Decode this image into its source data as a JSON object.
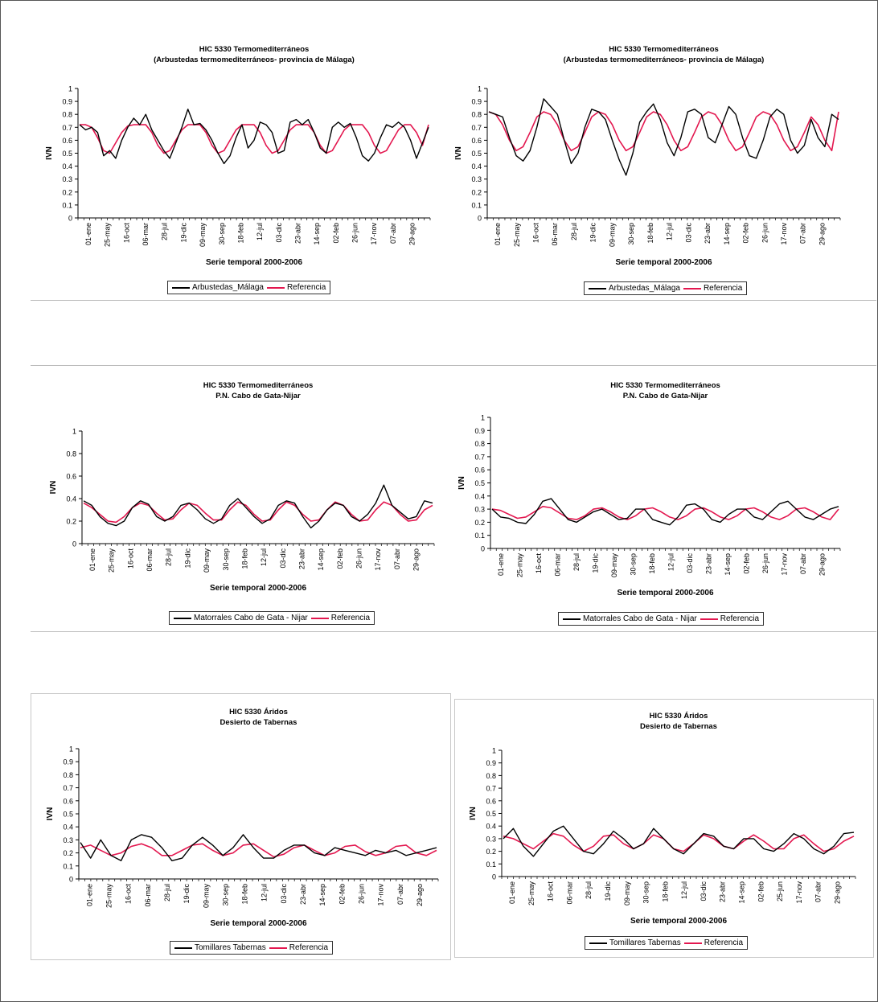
{
  "colors": {
    "series": "#000000",
    "reference": "#e3174f",
    "axis": "#000000"
  },
  "chart_data": [
    {
      "type": "line",
      "title": "HIC 5330 Termomediterráneos",
      "subtitle": "(Arbustedas termomediterráneos- provincia de Málaga)",
      "xlabel": "Serie temporal 2000-2006",
      "ylabel": "IVN",
      "ylim": [
        0,
        1
      ],
      "yticks": [
        "0",
        "0.1",
        "0.2",
        "0.3",
        "0.4",
        "0.5",
        "0.6",
        "0.7",
        "0.8",
        "0.9",
        "1"
      ],
      "xticks": [
        "01-ene",
        "25-may",
        "16-oct",
        "06-mar",
        "28-jul",
        "19-dic",
        "09-may",
        "30-sep",
        "18-feb",
        "12-jul",
        "03-dic",
        "23-abr",
        "14-sep",
        "02-feb",
        "26-jun",
        "17-nov",
        "07-abr",
        "29-ago"
      ],
      "legend": "bottom",
      "series": [
        {
          "name": "Arbustedas_Málaga",
          "color": "#000000",
          "values": [
            0.72,
            0.68,
            0.7,
            0.66,
            0.48,
            0.52,
            0.46,
            0.6,
            0.7,
            0.77,
            0.72,
            0.8,
            0.68,
            0.6,
            0.52,
            0.46,
            0.58,
            0.7,
            0.84,
            0.72,
            0.73,
            0.68,
            0.6,
            0.5,
            0.42,
            0.48,
            0.62,
            0.72,
            0.54,
            0.6,
            0.74,
            0.72,
            0.66,
            0.5,
            0.52,
            0.74,
            0.76,
            0.72,
            0.76,
            0.66,
            0.54,
            0.5,
            0.7,
            0.74,
            0.7,
            0.73,
            0.62,
            0.48,
            0.44,
            0.5,
            0.62,
            0.72,
            0.7,
            0.74,
            0.7,
            0.6,
            0.46,
            0.58,
            0.7
          ]
        },
        {
          "name": "Referencia",
          "color": "#e3174f",
          "values": [
            0.72,
            0.72,
            0.7,
            0.62,
            0.52,
            0.5,
            0.58,
            0.66,
            0.71,
            0.72,
            0.72,
            0.72,
            0.66,
            0.56,
            0.5,
            0.52,
            0.6,
            0.68,
            0.72,
            0.72,
            0.72,
            0.66,
            0.56,
            0.5,
            0.52,
            0.6,
            0.68,
            0.72,
            0.72,
            0.72,
            0.66,
            0.56,
            0.5,
            0.52,
            0.6,
            0.68,
            0.72,
            0.72,
            0.72,
            0.66,
            0.56,
            0.5,
            0.52,
            0.6,
            0.68,
            0.72,
            0.72,
            0.72,
            0.66,
            0.56,
            0.5,
            0.52,
            0.6,
            0.68,
            0.72,
            0.72,
            0.66,
            0.56,
            0.72
          ]
        }
      ]
    },
    {
      "type": "line",
      "title": "HIC 5330 Termomediterráneos",
      "subtitle": "(Arbustedas termomediterráneos- provincia de Málaga)",
      "xlabel": "Serie temporal 2000-2006",
      "ylabel": "IVN",
      "ylim": [
        0,
        1
      ],
      "yticks": [
        "0",
        "0.1",
        "0.2",
        "0.3",
        "0.4",
        "0.5",
        "0.6",
        "0.7",
        "0.8",
        "0.9",
        "1"
      ],
      "xticks": [
        "01-ene",
        "25-may",
        "16-oct",
        "06-mar",
        "28-jul",
        "19-dic",
        "09-may",
        "30-sep",
        "18-feb",
        "12-jul",
        "03-dic",
        "23-abr",
        "14-sep",
        "02-feb",
        "26-jun",
        "17-nov",
        "07-abr",
        "29-ago"
      ],
      "legend": "bottom",
      "series": [
        {
          "name": "Arbustedas_Málaga",
          "color": "#000000",
          "values": [
            0.82,
            0.8,
            0.78,
            0.62,
            0.48,
            0.44,
            0.52,
            0.7,
            0.92,
            0.86,
            0.8,
            0.6,
            0.42,
            0.5,
            0.7,
            0.84,
            0.82,
            0.76,
            0.6,
            0.45,
            0.33,
            0.5,
            0.74,
            0.82,
            0.88,
            0.76,
            0.58,
            0.48,
            0.62,
            0.82,
            0.84,
            0.8,
            0.62,
            0.58,
            0.72,
            0.86,
            0.8,
            0.62,
            0.48,
            0.46,
            0.6,
            0.78,
            0.84,
            0.8,
            0.6,
            0.5,
            0.56,
            0.76,
            0.62,
            0.55,
            0.8,
            0.76
          ]
        },
        {
          "name": "Referencia",
          "color": "#e3174f",
          "values": [
            0.82,
            0.8,
            0.72,
            0.6,
            0.52,
            0.55,
            0.66,
            0.78,
            0.82,
            0.8,
            0.72,
            0.6,
            0.52,
            0.55,
            0.66,
            0.78,
            0.82,
            0.8,
            0.72,
            0.6,
            0.52,
            0.55,
            0.66,
            0.78,
            0.82,
            0.8,
            0.72,
            0.6,
            0.52,
            0.55,
            0.66,
            0.78,
            0.82,
            0.8,
            0.72,
            0.6,
            0.52,
            0.55,
            0.66,
            0.78,
            0.82,
            0.8,
            0.72,
            0.6,
            0.52,
            0.55,
            0.66,
            0.78,
            0.72,
            0.6,
            0.52,
            0.82
          ]
        }
      ]
    },
    {
      "type": "line",
      "title": "HIC 5330 Termomediterráneos",
      "subtitle": "P.N. Cabo de Gata-Nijar",
      "xlabel": "Serie temporal 2000-2006",
      "ylabel": "IVN",
      "ylim": [
        0,
        1
      ],
      "yticks": [
        "0",
        "0.2",
        "0.4",
        "0.6",
        "0.8",
        "1"
      ],
      "xticks": [
        "01-ene",
        "25-may",
        "16-oct",
        "06-mar",
        "28-jul",
        "19-dic",
        "09-may",
        "30-sep",
        "18-feb",
        "12-jul",
        "03-dic",
        "23-abr",
        "14-sep",
        "02-feb",
        "26-jun",
        "17-nov",
        "07-abr",
        "29-ago"
      ],
      "legend": "bottom",
      "series": [
        {
          "name": "Matorrales Cabo de Gata - Nijar",
          "color": "#000000",
          "values": [
            0.38,
            0.34,
            0.24,
            0.18,
            0.16,
            0.2,
            0.32,
            0.38,
            0.35,
            0.24,
            0.2,
            0.24,
            0.34,
            0.36,
            0.3,
            0.22,
            0.18,
            0.22,
            0.34,
            0.4,
            0.32,
            0.24,
            0.18,
            0.22,
            0.34,
            0.38,
            0.36,
            0.24,
            0.14,
            0.2,
            0.3,
            0.36,
            0.34,
            0.24,
            0.2,
            0.26,
            0.36,
            0.52,
            0.34,
            0.28,
            0.22,
            0.24,
            0.38,
            0.36
          ]
        },
        {
          "name": "Referencia",
          "color": "#e3174f",
          "values": [
            0.36,
            0.32,
            0.26,
            0.2,
            0.19,
            0.24,
            0.32,
            0.36,
            0.34,
            0.27,
            0.21,
            0.22,
            0.3,
            0.36,
            0.34,
            0.27,
            0.21,
            0.21,
            0.3,
            0.37,
            0.34,
            0.26,
            0.2,
            0.21,
            0.3,
            0.37,
            0.34,
            0.26,
            0.2,
            0.21,
            0.3,
            0.37,
            0.34,
            0.26,
            0.2,
            0.21,
            0.3,
            0.37,
            0.34,
            0.26,
            0.2,
            0.21,
            0.3,
            0.34
          ]
        }
      ]
    },
    {
      "type": "line",
      "title": "HIC 5330 Termomediterráneos",
      "subtitle": "P.N. Cabo de Gata-Nijar",
      "xlabel": "Serie temporal 2000-2006",
      "ylabel": "IVN",
      "ylim": [
        0,
        1
      ],
      "yticks": [
        "0",
        "0.1",
        "0.2",
        "0.3",
        "0.4",
        "0.5",
        "0.6",
        "0.7",
        "0.8",
        "0.9",
        "1"
      ],
      "xticks": [
        "01-ene",
        "25-may",
        "16-oct",
        "06-mar",
        "28-jul",
        "19-dic",
        "09-may",
        "30-sep",
        "18-feb",
        "12-jul",
        "03-dic",
        "23-abr",
        "14-sep",
        "02-feb",
        "26-jun",
        "17-nov",
        "07-abr",
        "29-ago"
      ],
      "legend": "bottom",
      "series": [
        {
          "name": "Matorrales Cabo de Gata - Nijar",
          "color": "#000000",
          "values": [
            0.3,
            0.24,
            0.23,
            0.2,
            0.19,
            0.26,
            0.36,
            0.38,
            0.3,
            0.22,
            0.2,
            0.24,
            0.28,
            0.3,
            0.26,
            0.22,
            0.23,
            0.3,
            0.3,
            0.22,
            0.2,
            0.18,
            0.24,
            0.33,
            0.34,
            0.3,
            0.22,
            0.2,
            0.26,
            0.3,
            0.3,
            0.24,
            0.22,
            0.28,
            0.34,
            0.36,
            0.3,
            0.24,
            0.22,
            0.26,
            0.3,
            0.32
          ]
        },
        {
          "name": "Referencia",
          "color": "#e3174f",
          "values": [
            0.3,
            0.29,
            0.26,
            0.23,
            0.24,
            0.28,
            0.32,
            0.31,
            0.27,
            0.23,
            0.22,
            0.25,
            0.3,
            0.31,
            0.28,
            0.24,
            0.22,
            0.25,
            0.3,
            0.31,
            0.28,
            0.24,
            0.22,
            0.25,
            0.3,
            0.31,
            0.28,
            0.24,
            0.22,
            0.25,
            0.3,
            0.31,
            0.28,
            0.24,
            0.22,
            0.25,
            0.3,
            0.31,
            0.28,
            0.24,
            0.22,
            0.3
          ]
        }
      ]
    },
    {
      "type": "line",
      "title": "HIC 5330 Áridos",
      "subtitle": "Desierto de Tabernas",
      "xlabel": "Serie temporal 2000-2006",
      "ylabel": "IVN",
      "ylim": [
        0,
        1
      ],
      "yticks": [
        "0",
        "0.1",
        "0.2",
        "0.3",
        "0.4",
        "0.5",
        "0.6",
        "0.7",
        "0.8",
        "0.9",
        "1"
      ],
      "xticks": [
        "01-ene",
        "25-may",
        "16-oct",
        "06-mar",
        "28-jul",
        "19-dic",
        "09-may",
        "30-sep",
        "18-feb",
        "12-jul",
        "03-dic",
        "23-abr",
        "14-sep",
        "02-feb",
        "26-jun",
        "17-nov",
        "07-abr",
        "29-ago"
      ],
      "legend": "bottom",
      "series": [
        {
          "name": "Tomillares Tabernas",
          "color": "#000000",
          "values": [
            0.28,
            0.16,
            0.3,
            0.18,
            0.14,
            0.3,
            0.34,
            0.32,
            0.24,
            0.14,
            0.16,
            0.26,
            0.32,
            0.26,
            0.18,
            0.24,
            0.34,
            0.24,
            0.16,
            0.16,
            0.22,
            0.26,
            0.26,
            0.2,
            0.18,
            0.24,
            0.22,
            0.2,
            0.18,
            0.22,
            0.2,
            0.22,
            0.18,
            0.2,
            0.22,
            0.24
          ]
        },
        {
          "name": "Referencia",
          "color": "#e3174f",
          "values": [
            0.24,
            0.26,
            0.22,
            0.18,
            0.2,
            0.25,
            0.27,
            0.24,
            0.18,
            0.18,
            0.22,
            0.26,
            0.27,
            0.22,
            0.18,
            0.2,
            0.26,
            0.27,
            0.22,
            0.17,
            0.19,
            0.24,
            0.26,
            0.22,
            0.18,
            0.2,
            0.25,
            0.26,
            0.21,
            0.18,
            0.2,
            0.25,
            0.26,
            0.2,
            0.18,
            0.22
          ]
        }
      ]
    },
    {
      "type": "line",
      "title": "HIC 5330 Áridos",
      "subtitle": "Desierto de Tabernas",
      "xlabel": "Serie temporal 2000-2006",
      "ylabel": "IVN",
      "ylim": [
        0,
        1
      ],
      "yticks": [
        "0",
        "0.1",
        "0.2",
        "0.3",
        "0.4",
        "0.5",
        "0.6",
        "0.7",
        "0.8",
        "0.9",
        "1"
      ],
      "xticks": [
        "01-ene",
        "25-may",
        "16-oct",
        "06-mar",
        "28-jul",
        "19-dic",
        "09-may",
        "30-sep",
        "18-feb",
        "12-jul",
        "03-dic",
        "23-abr",
        "14-sep",
        "02-feb",
        "25-jun",
        "17-nov",
        "07-abr",
        "29-ago"
      ],
      "legend": "bottom",
      "series": [
        {
          "name": "Tomillares Tabernas",
          "color": "#000000",
          "values": [
            0.3,
            0.38,
            0.24,
            0.16,
            0.26,
            0.36,
            0.4,
            0.3,
            0.2,
            0.18,
            0.26,
            0.36,
            0.3,
            0.22,
            0.26,
            0.38,
            0.3,
            0.22,
            0.18,
            0.26,
            0.34,
            0.32,
            0.24,
            0.22,
            0.3,
            0.3,
            0.22,
            0.2,
            0.26,
            0.34,
            0.3,
            0.22,
            0.18,
            0.24,
            0.34,
            0.35
          ]
        },
        {
          "name": "Referencia",
          "color": "#e3174f",
          "values": [
            0.32,
            0.3,
            0.26,
            0.22,
            0.28,
            0.34,
            0.32,
            0.25,
            0.2,
            0.24,
            0.32,
            0.33,
            0.26,
            0.22,
            0.26,
            0.33,
            0.3,
            0.22,
            0.2,
            0.26,
            0.33,
            0.3,
            0.24,
            0.22,
            0.28,
            0.33,
            0.28,
            0.22,
            0.22,
            0.3,
            0.33,
            0.26,
            0.2,
            0.22,
            0.28,
            0.32
          ]
        }
      ]
    }
  ]
}
